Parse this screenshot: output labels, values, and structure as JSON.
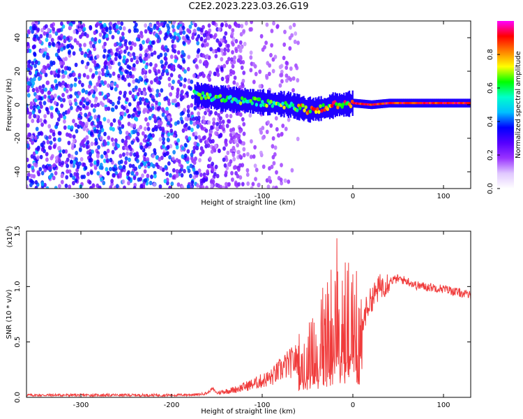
{
  "title": "C2E2.2023.223.03.26.G19",
  "chart_data": [
    {
      "type": "heatmap",
      "title": "C2E2.2023.223.03.26.G19",
      "xlabel": "Height of straight line (km)",
      "ylabel": "Frequency (Hz)",
      "xlim": [
        -360,
        130
      ],
      "ylim": [
        -50,
        50
      ],
      "x_ticks": [
        -300,
        -200,
        -100,
        0,
        100
      ],
      "y_ticks": [
        -40,
        -20,
        0,
        20,
        40
      ],
      "colorbar": {
        "label": "Normalized spectral amplitude",
        "range": [
          0.0,
          1.0
        ],
        "ticks": [
          0.0,
          0.2,
          0.4,
          0.6,
          0.8
        ],
        "colors": [
          "#ffffff",
          "#e0c8ff",
          "#9933ff",
          "#5500ff",
          "#0000ff",
          "#00bfff",
          "#00ffcc",
          "#00ff00",
          "#ffff00",
          "#ff8000",
          "#ff0000",
          "#ff00ff"
        ]
      },
      "ridge": {
        "x": [
          -170,
          -150,
          -130,
          -110,
          -90,
          -70,
          -50,
          -30,
          -20,
          -10,
          0,
          20,
          40,
          60,
          80,
          100,
          130
        ],
        "y": [
          6,
          4,
          3,
          2,
          1,
          0,
          -3,
          -2,
          0,
          0,
          1,
          0,
          1,
          1,
          1,
          1,
          1
        ]
      },
      "noise_region": [
        -360,
        -120
      ]
    },
    {
      "type": "line",
      "xlabel": "Height of straight line (km)",
      "ylabel": "SNR (10 * v/v)",
      "y_multiplier": "(x10",
      "y_multiplier_exp": "4",
      "y_multiplier_close": ")",
      "xlim": [
        -360,
        130
      ],
      "ylim": [
        0,
        1.5
      ],
      "x_ticks": [
        -300,
        -200,
        -100,
        0,
        100
      ],
      "y_ticks": [
        0.0,
        0.5,
        1.0,
        1.5
      ],
      "y_tick_labels": [
        "0.0",
        "0.5",
        "1.0",
        "1.5"
      ],
      "series": [
        {
          "color": "#f03c3c",
          "x": [
            -360,
            -300,
            -250,
            -200,
            -170,
            -160,
            -155,
            -150,
            -130,
            -110,
            -90,
            -75,
            -60,
            -45,
            -35,
            -28,
            -22,
            -18,
            -15,
            -10,
            -5,
            0,
            5,
            10,
            15,
            20,
            30,
            40,
            50,
            60,
            70,
            80,
            90,
            100,
            110,
            120,
            130
          ],
          "y": [
            0.02,
            0.02,
            0.02,
            0.02,
            0.025,
            0.04,
            0.08,
            0.04,
            0.07,
            0.12,
            0.18,
            0.28,
            0.35,
            0.42,
            0.55,
            0.65,
            0.75,
            0.9,
            0.7,
            0.72,
            0.75,
            0.68,
            0.7,
            0.62,
            0.8,
            0.88,
            1.0,
            1.05,
            1.07,
            1.05,
            1.01,
            1.0,
            0.99,
            0.98,
            0.96,
            0.94,
            0.92
          ]
        }
      ]
    }
  ]
}
